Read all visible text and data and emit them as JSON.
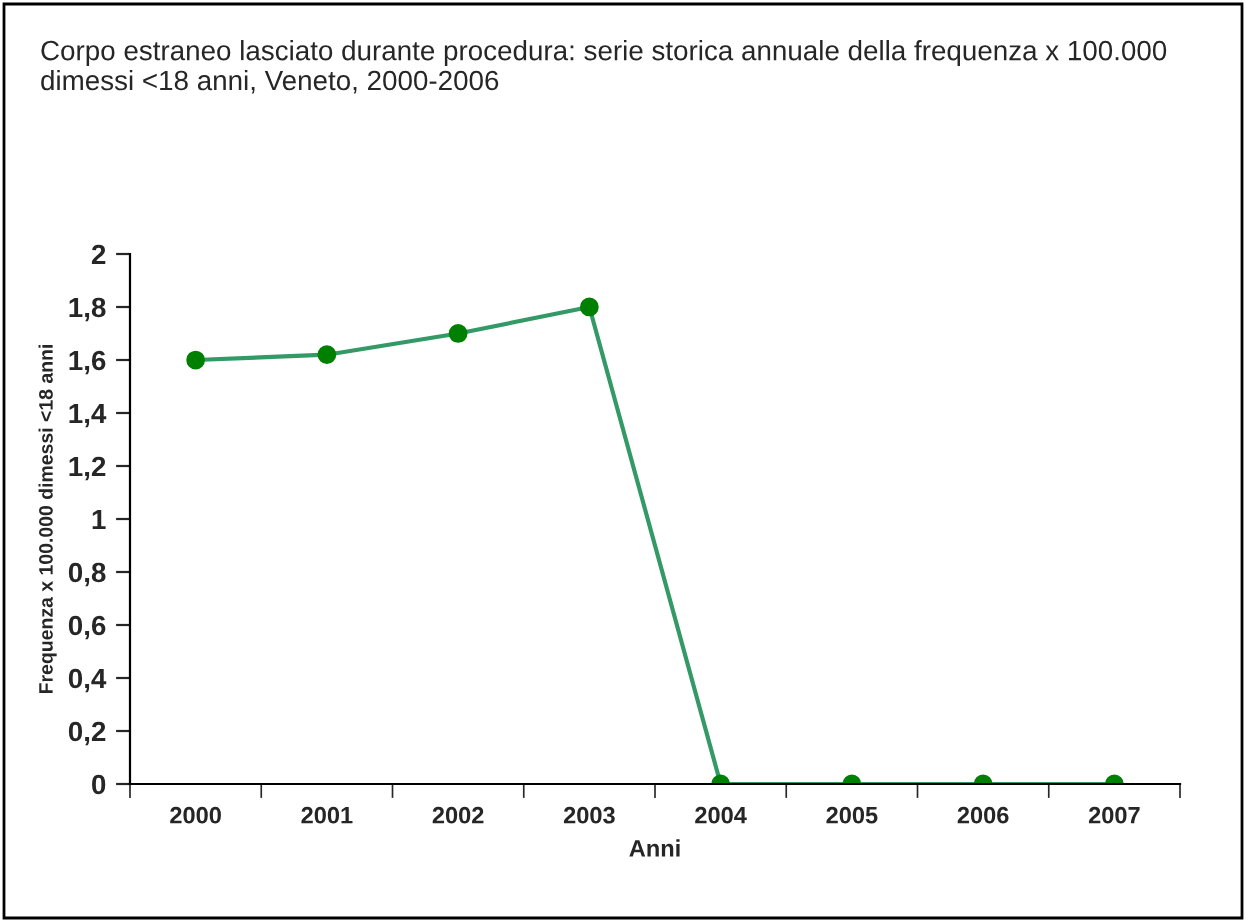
{
  "chart_data": {
    "type": "line",
    "title": "Corpo estraneo lasciato durante procedura: serie storica annuale della frequenza x 100.000 dimessi <18 anni, Veneto, 2000-2006",
    "xlabel": "Anni",
    "ylabel": "Frequenza x 100.000 dimessi <18 anni",
    "categories": [
      "2000",
      "2001",
      "2002",
      "2003",
      "2004",
      "2005",
      "2006",
      "2007"
    ],
    "series": [
      {
        "color": "#339966",
        "values": [
          1.6,
          1.62,
          1.7,
          1.8,
          0,
          0,
          0,
          0
        ]
      }
    ],
    "marker": "circle",
    "line_style": "solid",
    "grid": false,
    "ylim": [
      0,
      2
    ],
    "yticks": [
      {
        "value": 0,
        "label": "0"
      },
      {
        "value": 0.2,
        "label": "0,2"
      },
      {
        "value": 0.4,
        "label": "0,4"
      },
      {
        "value": 0.6,
        "label": "0,6"
      },
      {
        "value": 0.8,
        "label": "0,8"
      },
      {
        "value": 1,
        "label": "1"
      },
      {
        "value": 1.2,
        "label": "1,2"
      },
      {
        "value": 1.4,
        "label": "1,4"
      },
      {
        "value": 1.6,
        "label": "1,6"
      },
      {
        "value": 1.8,
        "label": "1,8"
      },
      {
        "value": 2,
        "label": "2"
      }
    ]
  }
}
